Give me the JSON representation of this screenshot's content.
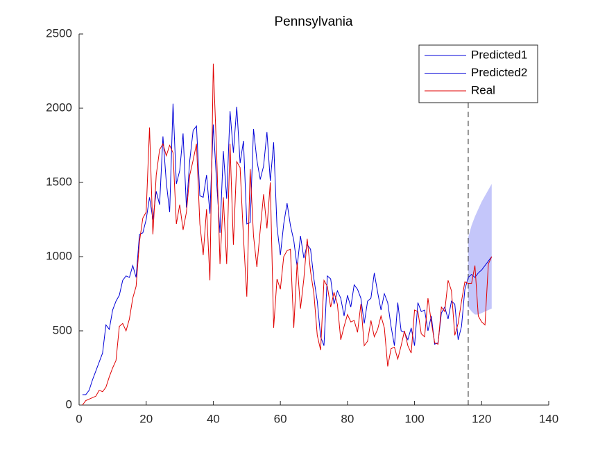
{
  "chart_data": {
    "type": "line",
    "title": "Pennsylvania",
    "xlim": [
      0,
      140
    ],
    "xticks": [
      0,
      20,
      40,
      60,
      80,
      100,
      120,
      140
    ],
    "ylim": [
      0,
      2500
    ],
    "yticks": [
      0,
      500,
      1000,
      1500,
      2000,
      2500
    ],
    "legend": "top-right",
    "vline": 116,
    "band": {
      "color": "#c4c6fa",
      "x": [
        116,
        117,
        118,
        119,
        120,
        121,
        122,
        123
      ],
      "lower": [
        660,
        630,
        610,
        610,
        620,
        630,
        640,
        650
      ],
      "upper": [
        1130,
        1210,
        1270,
        1320,
        1370,
        1410,
        1450,
        1490
      ]
    },
    "series": [
      {
        "name": "Predicted1",
        "color": "#0000d8",
        "x": [
          1,
          2,
          3,
          4,
          5,
          6,
          7,
          8,
          9,
          10,
          11,
          12,
          13,
          14,
          15,
          16,
          17,
          18,
          19,
          20,
          21,
          22,
          23,
          24,
          25,
          26,
          27,
          28,
          29,
          30,
          31,
          32,
          33,
          34,
          35,
          36,
          37,
          38,
          39,
          40,
          41,
          42,
          43,
          44,
          45,
          46,
          47,
          48,
          49,
          50,
          51,
          52,
          53,
          54,
          55,
          56,
          57,
          58,
          59,
          60,
          61,
          62,
          63,
          64,
          65,
          66,
          67,
          68,
          69,
          70,
          71,
          72,
          73,
          74,
          75,
          76,
          77,
          78,
          79,
          80,
          81,
          82,
          83,
          84,
          85,
          86,
          87,
          88,
          89,
          90,
          91,
          92,
          93,
          94,
          95,
          96,
          97,
          98,
          99,
          100,
          101,
          102,
          103,
          104,
          105,
          106,
          107,
          108,
          109,
          110,
          111,
          112,
          113,
          114,
          115,
          116
        ],
        "values": [
          70,
          70,
          100,
          170,
          230,
          290,
          350,
          540,
          510,
          640,
          700,
          740,
          840,
          870,
          860,
          940,
          860,
          1150,
          1160,
          1250,
          1400,
          1250,
          1440,
          1350,
          1810,
          1500,
          1300,
          2030,
          1490,
          1580,
          1830,
          1330,
          1650,
          1850,
          1880,
          1410,
          1400,
          1550,
          1290,
          1890,
          1500,
          1160,
          1710,
          1390,
          1980,
          1700,
          2010,
          1630,
          1780,
          1220,
          1230,
          1860,
          1650,
          1520,
          1610,
          1840,
          1510,
          1770,
          1200,
          1010,
          1220,
          1360,
          1210,
          1110,
          930,
          1140,
          990,
          1080,
          1050,
          850,
          700,
          460,
          400,
          870,
          850,
          680,
          770,
          720,
          600,
          740,
          660,
          810,
          780,
          720,
          550,
          700,
          720,
          890,
          760,
          640,
          750,
          690,
          530,
          400,
          690,
          500,
          490,
          440,
          520,
          400,
          690,
          630,
          640,
          500,
          600,
          410,
          420,
          620,
          660,
          580,
          700,
          680,
          440,
          530,
          780,
          860
        ]
      },
      {
        "name": "Predicted2",
        "color": "#0000d8",
        "x": [
          116,
          117,
          118,
          119,
          120,
          121,
          122,
          123
        ],
        "values": [
          860,
          880,
          860,
          890,
          910,
          940,
          970,
          1000
        ]
      },
      {
        "name": "Real",
        "color": "#e00000",
        "x": [
          1,
          2,
          3,
          4,
          5,
          6,
          7,
          8,
          9,
          10,
          11,
          12,
          13,
          14,
          15,
          16,
          17,
          18,
          19,
          20,
          21,
          22,
          23,
          24,
          25,
          26,
          27,
          28,
          29,
          30,
          31,
          32,
          33,
          34,
          35,
          36,
          37,
          38,
          39,
          40,
          41,
          42,
          43,
          44,
          45,
          46,
          47,
          48,
          49,
          50,
          51,
          52,
          53,
          54,
          55,
          56,
          57,
          58,
          59,
          60,
          61,
          62,
          63,
          64,
          65,
          66,
          67,
          68,
          69,
          70,
          71,
          72,
          73,
          74,
          75,
          76,
          77,
          78,
          79,
          80,
          81,
          82,
          83,
          84,
          85,
          86,
          87,
          88,
          89,
          90,
          91,
          92,
          93,
          94,
          95,
          96,
          97,
          98,
          99,
          100,
          101,
          102,
          103,
          104,
          105,
          106,
          107,
          108,
          109,
          110,
          111,
          112,
          113,
          114,
          115,
          116,
          117,
          118,
          119,
          120,
          121,
          122,
          123
        ],
        "values": [
          0,
          30,
          40,
          50,
          60,
          100,
          90,
          120,
          190,
          250,
          300,
          530,
          550,
          500,
          580,
          720,
          800,
          1100,
          1260,
          1300,
          1870,
          1150,
          1550,
          1720,
          1760,
          1680,
          1750,
          1700,
          1220,
          1350,
          1180,
          1300,
          1550,
          1650,
          1760,
          1220,
          1010,
          1320,
          840,
          2300,
          1700,
          950,
          1400,
          950,
          1760,
          1080,
          1640,
          1600,
          1130,
          730,
          1590,
          1140,
          930,
          1180,
          1420,
          1190,
          1500,
          520,
          850,
          780,
          1000,
          1040,
          1050,
          520,
          960,
          650,
          850,
          1120,
          900,
          750,
          470,
          370,
          840,
          800,
          660,
          760,
          680,
          440,
          530,
          610,
          560,
          570,
          490,
          680,
          400,
          430,
          570,
          460,
          510,
          600,
          520,
          260,
          380,
          390,
          310,
          400,
          500,
          400,
          350,
          640,
          630,
          480,
          460,
          720,
          560,
          420,
          410,
          660,
          630,
          840,
          770,
          470,
          550,
          700,
          830,
          820,
          820,
          940,
          600,
          560,
          540,
          950,
          1000
        ]
      }
    ]
  }
}
